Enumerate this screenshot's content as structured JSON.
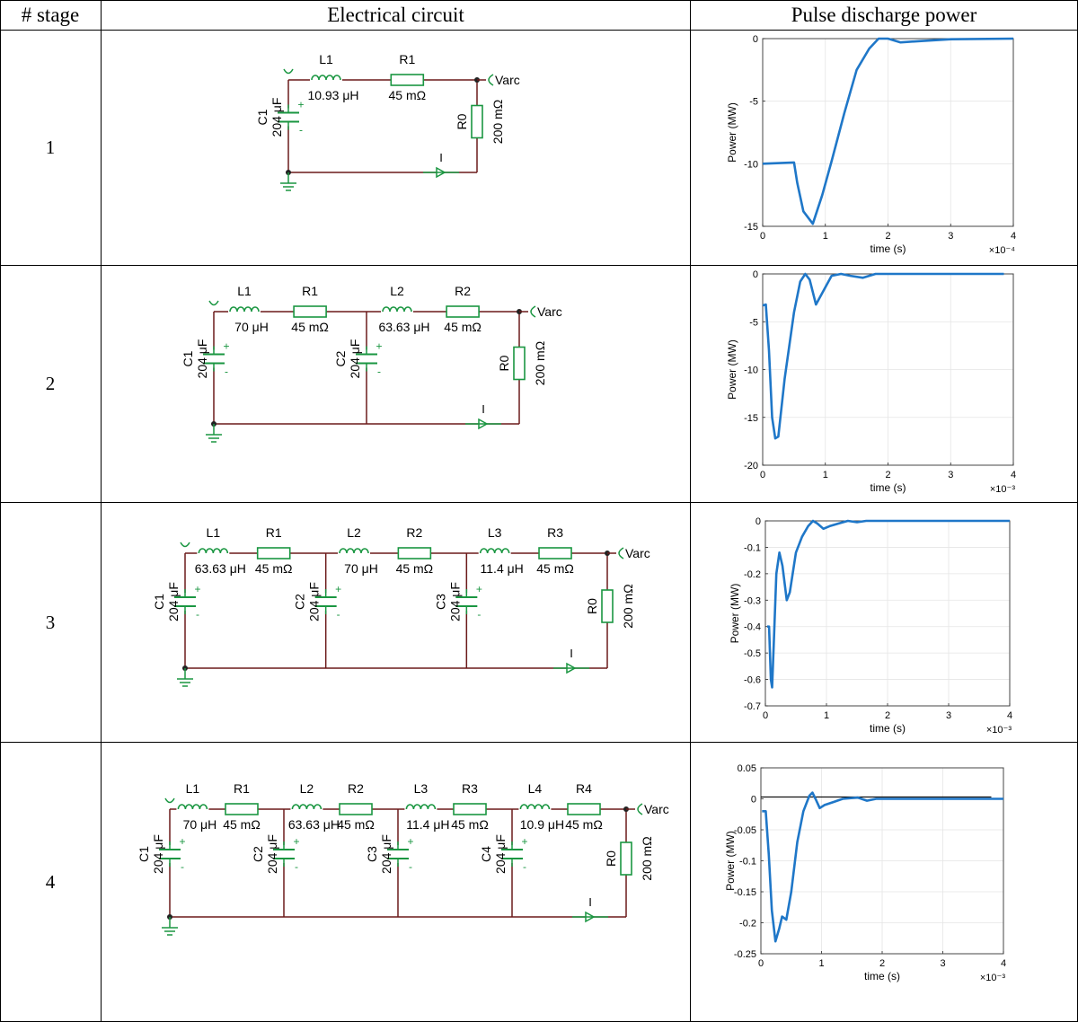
{
  "headers": {
    "stage": "# stage",
    "circuit": "Electrical circuit",
    "power": "Pulse discharge power"
  },
  "colors": {
    "wire": "#6b1a1a",
    "component": "#1a9641",
    "plot_line": "#1f77c8",
    "axis": "#262626",
    "grid": "#e5e5e5"
  },
  "rows": [
    {
      "stage": "1",
      "circuit": {
        "inductors": [
          {
            "name": "L1",
            "value": "10.93 μH"
          }
        ],
        "resistors": [
          {
            "name": "R1",
            "value": "45 mΩ"
          }
        ],
        "capacitors": [
          {
            "name": "C1",
            "value": "204 μF"
          }
        ],
        "load": {
          "name": "R0",
          "value": "200 mΩ"
        },
        "output_label": "Varc",
        "current_label": "I",
        "polarity_plus": "+",
        "polarity_minus": "-"
      },
      "plot": {
        "ylabel": "Power (MW)",
        "xlabel": "time (s)",
        "exponent": "×10⁻⁴",
        "yticks": [
          "0",
          "-5",
          "-10",
          "-15"
        ],
        "xticks": [
          "0",
          "1",
          "2",
          "3",
          "4"
        ],
        "ylim": [
          -15,
          0
        ],
        "xlim": [
          0,
          4
        ],
        "series": [
          [
            0,
            -10
          ],
          [
            0.5,
            -9.9
          ],
          [
            0.55,
            -11.5
          ],
          [
            0.65,
            -13.8
          ],
          [
            0.8,
            -14.8
          ],
          [
            0.95,
            -12.5
          ],
          [
            1.1,
            -9.8
          ],
          [
            1.3,
            -6
          ],
          [
            1.5,
            -2.5
          ],
          [
            1.7,
            -0.8
          ],
          [
            1.85,
            0
          ],
          [
            2.0,
            0
          ],
          [
            2.2,
            -0.3
          ],
          [
            2.5,
            -0.2
          ],
          [
            3,
            -0.05
          ],
          [
            4,
            0
          ]
        ]
      }
    },
    {
      "stage": "2",
      "circuit": {
        "inductors": [
          {
            "name": "L1",
            "value": "70 μH"
          },
          {
            "name": "L2",
            "value": "63.63 μH"
          }
        ],
        "resistors": [
          {
            "name": "R1",
            "value": "45 mΩ"
          },
          {
            "name": "R2",
            "value": "45 mΩ"
          }
        ],
        "capacitors": [
          {
            "name": "C1",
            "value": "204 μF"
          },
          {
            "name": "C2",
            "value": "204 μF"
          }
        ],
        "load": {
          "name": "R0",
          "value": "200 mΩ"
        },
        "output_label": "Varc",
        "current_label": "I",
        "polarity_plus": "+",
        "polarity_minus": "-"
      },
      "plot": {
        "ylabel": "Power (MW)",
        "xlabel": "time (s)",
        "exponent": "×10⁻³",
        "yticks": [
          "0",
          "-5",
          "-10",
          "-15",
          "-20"
        ],
        "xticks": [
          "0",
          "1",
          "2",
          "3",
          "4"
        ],
        "ylim": [
          -20,
          0
        ],
        "xlim": [
          0,
          4
        ],
        "series": [
          [
            0,
            -3.3
          ],
          [
            0.05,
            -3.2
          ],
          [
            0.1,
            -8
          ],
          [
            0.15,
            -15
          ],
          [
            0.2,
            -17.2
          ],
          [
            0.25,
            -17
          ],
          [
            0.35,
            -11
          ],
          [
            0.5,
            -4
          ],
          [
            0.6,
            -0.8
          ],
          [
            0.68,
            0
          ],
          [
            0.75,
            -0.6
          ],
          [
            0.85,
            -3.2
          ],
          [
            0.95,
            -2
          ],
          [
            1.1,
            -0.2
          ],
          [
            1.25,
            0
          ],
          [
            1.4,
            -0.2
          ],
          [
            1.6,
            -0.4
          ],
          [
            1.8,
            0
          ],
          [
            2.5,
            0
          ],
          [
            3.85,
            0
          ]
        ]
      }
    },
    {
      "stage": "3",
      "circuit": {
        "inductors": [
          {
            "name": "L1",
            "value": "63.63 μH"
          },
          {
            "name": "L2",
            "value": "70 μH"
          },
          {
            "name": "L3",
            "value": "11.4 μH"
          }
        ],
        "resistors": [
          {
            "name": "R1",
            "value": "45 mΩ"
          },
          {
            "name": "R2",
            "value": "45 mΩ"
          },
          {
            "name": "R3",
            "value": "45 mΩ"
          }
        ],
        "capacitors": [
          {
            "name": "C1",
            "value": "204 μF"
          },
          {
            "name": "C2",
            "value": "204 μF"
          },
          {
            "name": "C3",
            "value": "204 μF"
          }
        ],
        "load": {
          "name": "R0",
          "value": "200 mΩ"
        },
        "output_label": "Varc",
        "current_label": "I",
        "polarity_plus": "+",
        "polarity_minus": "-"
      },
      "plot": {
        "ylabel": "Power (MW)",
        "xlabel": "time (s)",
        "exponent": "×10⁻³",
        "yticks": [
          "0",
          "-0.1",
          "-0.2",
          "-0.3",
          "-0.4",
          "-0.5",
          "-0.6",
          "-0.7"
        ],
        "xticks": [
          "0",
          "1",
          "2",
          "3",
          "4"
        ],
        "ylim": [
          -0.7,
          0
        ],
        "xlim": [
          0,
          4
        ],
        "series": [
          [
            0.03,
            -0.4
          ],
          [
            0.06,
            -0.4
          ],
          [
            0.09,
            -0.6
          ],
          [
            0.11,
            -0.63
          ],
          [
            0.14,
            -0.45
          ],
          [
            0.18,
            -0.2
          ],
          [
            0.23,
            -0.12
          ],
          [
            0.28,
            -0.17
          ],
          [
            0.35,
            -0.3
          ],
          [
            0.4,
            -0.27
          ],
          [
            0.5,
            -0.12
          ],
          [
            0.6,
            -0.06
          ],
          [
            0.7,
            -0.02
          ],
          [
            0.78,
            0
          ],
          [
            0.85,
            -0.01
          ],
          [
            0.95,
            -0.03
          ],
          [
            1.05,
            -0.02
          ],
          [
            1.2,
            -0.01
          ],
          [
            1.35,
            0
          ],
          [
            1.5,
            -0.005
          ],
          [
            1.65,
            0
          ],
          [
            4,
            0
          ]
        ]
      }
    },
    {
      "stage": "4",
      "circuit": {
        "inductors": [
          {
            "name": "L1",
            "value": "70 μH"
          },
          {
            "name": "L2",
            "value": "63.63 μH"
          },
          {
            "name": "L3",
            "value": "11.4 μH"
          },
          {
            "name": "L4",
            "value": "10.9 μH"
          }
        ],
        "resistors": [
          {
            "name": "R1",
            "value": "45 mΩ"
          },
          {
            "name": "R2",
            "value": "45 mΩ"
          },
          {
            "name": "R3",
            "value": "45 mΩ"
          },
          {
            "name": "R4",
            "value": "45 mΩ"
          }
        ],
        "capacitors": [
          {
            "name": "C1",
            "value": "204 μF"
          },
          {
            "name": "C2",
            "value": "204 μF"
          },
          {
            "name": "C3",
            "value": "204 μF"
          },
          {
            "name": "C4",
            "value": "204 μF"
          }
        ],
        "load": {
          "name": "R0",
          "value": "200 mΩ"
        },
        "output_label": "Varc",
        "current_label": "I",
        "polarity_plus": "+",
        "polarity_minus": "-"
      },
      "plot": {
        "ylabel": "Power (MW)",
        "xlabel": "time (s)",
        "exponent": "×10⁻³",
        "yticks": [
          "0.05",
          "0",
          "-0.05",
          "-0.1",
          "-0.15",
          "-0.2",
          "-0.25"
        ],
        "xticks": [
          "0",
          "1",
          "2",
          "3",
          "4"
        ],
        "ylim": [
          -0.25,
          0.05
        ],
        "xlim": [
          0,
          4
        ],
        "series": [
          [
            0.02,
            -0.02
          ],
          [
            0.08,
            -0.02
          ],
          [
            0.13,
            -0.09
          ],
          [
            0.18,
            -0.18
          ],
          [
            0.24,
            -0.23
          ],
          [
            0.3,
            -0.21
          ],
          [
            0.35,
            -0.19
          ],
          [
            0.42,
            -0.195
          ],
          [
            0.5,
            -0.15
          ],
          [
            0.6,
            -0.07
          ],
          [
            0.7,
            -0.02
          ],
          [
            0.8,
            0.005
          ],
          [
            0.85,
            0.01
          ],
          [
            0.9,
            0
          ],
          [
            0.97,
            -0.015
          ],
          [
            1.05,
            -0.01
          ],
          [
            1.2,
            -0.005
          ],
          [
            1.35,
            0
          ],
          [
            1.6,
            0.002
          ],
          [
            1.75,
            -0.003
          ],
          [
            1.9,
            0
          ],
          [
            4,
            0
          ]
        ],
        "reference_line": {
          "from": 0,
          "to": 3.8,
          "value": 0.003
        }
      }
    }
  ]
}
